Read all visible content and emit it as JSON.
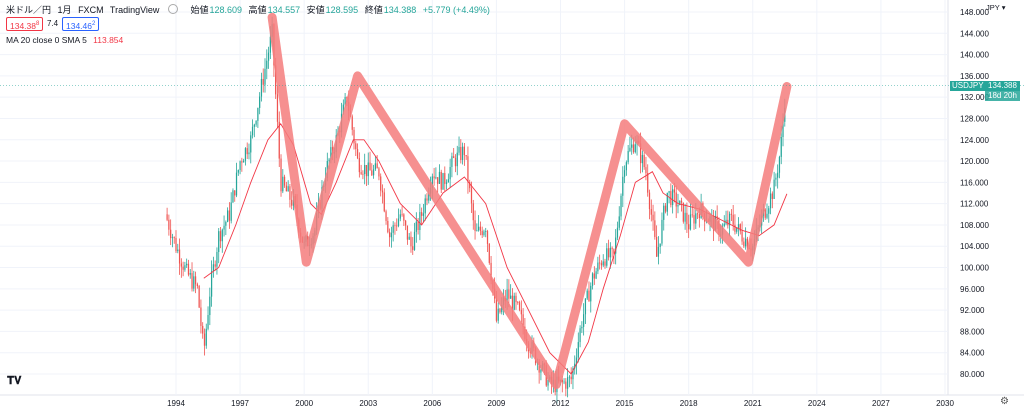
{
  "header": {
    "symbol": "米ドル／円",
    "interval": "1月",
    "exchange": "FXCM",
    "platform": "TradingView",
    "open_label": "始値",
    "open_value": "128.609",
    "high_label": "高値",
    "high_value": "134.557",
    "low_label": "安値",
    "low_value": "128.595",
    "close_label": "終値",
    "close_value": "134.388",
    "change": "+5.779 (+4.49%)",
    "sell_price": "134.38",
    "sell_sup": "8",
    "spread": "7.4",
    "buy_price": "134.46",
    "buy_sup": "2"
  },
  "indicator": {
    "label": "MA 20 close 0 SMA 5",
    "value": "113.854"
  },
  "currency_label": "JPY",
  "price_tag": {
    "symbol": "USDJPY",
    "price": "134.388",
    "countdown": "18d 20h"
  },
  "colors": {
    "up": "#26a69a",
    "down": "#ef5350",
    "ma": "#f23645",
    "overlay": "#f47c7c",
    "grid": "#f0f3fa"
  },
  "chart_data": {
    "type": "candlestick",
    "symbol": "USDJPY",
    "interval": "1M",
    "x_axis_labels": [
      "1994",
      "1997",
      "2000",
      "2003",
      "2006",
      "2009",
      "2012",
      "2015",
      "2018",
      "2021",
      "2024",
      "2027",
      "2030"
    ],
    "y_axis_labels": [
      "80.000",
      "84.000",
      "88.000",
      "92.000",
      "96.000",
      "100.000",
      "104.000",
      "108.000",
      "112.000",
      "116.000",
      "120.000",
      "124.000",
      "128.000",
      "132.000",
      "136.000",
      "140.000",
      "144.000",
      "148.000"
    ],
    "ylim": [
      77,
      149
    ],
    "approx_close_path": [
      {
        "x": 1993.5,
        "y": 110
      },
      {
        "x": 1994.0,
        "y": 104
      },
      {
        "x": 1994.5,
        "y": 99
      },
      {
        "x": 1995.0,
        "y": 96
      },
      {
        "x": 1995.3,
        "y": 84
      },
      {
        "x": 1995.6,
        "y": 96
      },
      {
        "x": 1996.0,
        "y": 106
      },
      {
        "x": 1996.5,
        "y": 110
      },
      {
        "x": 1997.0,
        "y": 120
      },
      {
        "x": 1997.5,
        "y": 124
      },
      {
        "x": 1998.0,
        "y": 134
      },
      {
        "x": 1998.5,
        "y": 144
      },
      {
        "x": 1998.9,
        "y": 116
      },
      {
        "x": 1999.5,
        "y": 112
      },
      {
        "x": 2000.0,
        "y": 104
      },
      {
        "x": 2000.5,
        "y": 107
      },
      {
        "x": 2001.0,
        "y": 118
      },
      {
        "x": 2001.5,
        "y": 124
      },
      {
        "x": 2002.0,
        "y": 132
      },
      {
        "x": 2002.5,
        "y": 120
      },
      {
        "x": 2003.0,
        "y": 118
      },
      {
        "x": 2003.5,
        "y": 118
      },
      {
        "x": 2004.0,
        "y": 106
      },
      {
        "x": 2004.5,
        "y": 110
      },
      {
        "x": 2005.0,
        "y": 104
      },
      {
        "x": 2005.5,
        "y": 110
      },
      {
        "x": 2006.0,
        "y": 118
      },
      {
        "x": 2006.5,
        "y": 116
      },
      {
        "x": 2007.0,
        "y": 120
      },
      {
        "x": 2007.5,
        "y": 122
      },
      {
        "x": 2008.0,
        "y": 106
      },
      {
        "x": 2008.5,
        "y": 108
      },
      {
        "x": 2009.0,
        "y": 90
      },
      {
        "x": 2009.5,
        "y": 95
      },
      {
        "x": 2010.0,
        "y": 92
      },
      {
        "x": 2010.5,
        "y": 86
      },
      {
        "x": 2011.0,
        "y": 82
      },
      {
        "x": 2011.5,
        "y": 78
      },
      {
        "x": 2012.0,
        "y": 78
      },
      {
        "x": 2012.5,
        "y": 79
      },
      {
        "x": 2013.0,
        "y": 90
      },
      {
        "x": 2013.5,
        "y": 98
      },
      {
        "x": 2014.0,
        "y": 102
      },
      {
        "x": 2014.5,
        "y": 102
      },
      {
        "x": 2015.0,
        "y": 120
      },
      {
        "x": 2015.5,
        "y": 124
      },
      {
        "x": 2016.0,
        "y": 118
      },
      {
        "x": 2016.5,
        "y": 102
      },
      {
        "x": 2017.0,
        "y": 114
      },
      {
        "x": 2017.5,
        "y": 112
      },
      {
        "x": 2018.0,
        "y": 108
      },
      {
        "x": 2018.5,
        "y": 111
      },
      {
        "x": 2019.0,
        "y": 109
      },
      {
        "x": 2019.5,
        "y": 107
      },
      {
        "x": 2020.0,
        "y": 109
      },
      {
        "x": 2020.5,
        "y": 106
      },
      {
        "x": 2021.0,
        "y": 104
      },
      {
        "x": 2021.5,
        "y": 110
      },
      {
        "x": 2022.0,
        "y": 115
      },
      {
        "x": 2022.3,
        "y": 122
      },
      {
        "x": 2022.45,
        "y": 129
      },
      {
        "x": 2022.55,
        "y": 134.388
      }
    ],
    "moving_average": [
      {
        "x": 1995.3,
        "y": 98
      },
      {
        "x": 1996.0,
        "y": 100
      },
      {
        "x": 1996.8,
        "y": 108
      },
      {
        "x": 1997.5,
        "y": 116
      },
      {
        "x": 1998.3,
        "y": 124
      },
      {
        "x": 1998.9,
        "y": 127
      },
      {
        "x": 1999.5,
        "y": 123
      },
      {
        "x": 2000.3,
        "y": 112
      },
      {
        "x": 2000.8,
        "y": 110
      },
      {
        "x": 2001.5,
        "y": 116
      },
      {
        "x": 2002.3,
        "y": 124
      },
      {
        "x": 2002.8,
        "y": 124
      },
      {
        "x": 2003.5,
        "y": 120
      },
      {
        "x": 2004.5,
        "y": 112
      },
      {
        "x": 2005.5,
        "y": 108
      },
      {
        "x": 2006.5,
        "y": 114
      },
      {
        "x": 2007.5,
        "y": 117
      },
      {
        "x": 2008.5,
        "y": 112
      },
      {
        "x": 2009.5,
        "y": 100
      },
      {
        "x": 2010.5,
        "y": 92
      },
      {
        "x": 2011.5,
        "y": 84
      },
      {
        "x": 2012.5,
        "y": 80
      },
      {
        "x": 2013.3,
        "y": 86
      },
      {
        "x": 2014.0,
        "y": 96
      },
      {
        "x": 2014.8,
        "y": 106
      },
      {
        "x": 2015.5,
        "y": 116
      },
      {
        "x": 2016.3,
        "y": 118
      },
      {
        "x": 2016.8,
        "y": 114
      },
      {
        "x": 2017.5,
        "y": 112
      },
      {
        "x": 2018.5,
        "y": 111
      },
      {
        "x": 2019.5,
        "y": 109
      },
      {
        "x": 2020.5,
        "y": 107
      },
      {
        "x": 2021.3,
        "y": 106
      },
      {
        "x": 2022.0,
        "y": 108
      },
      {
        "x": 2022.6,
        "y": 113.854
      }
    ],
    "overlay_trendline": [
      {
        "x": 1998.5,
        "y": 147
      },
      {
        "x": 2000.1,
        "y": 101
      },
      {
        "x": 2002.5,
        "y": 136
      },
      {
        "x": 2011.8,
        "y": 78
      },
      {
        "x": 2015.0,
        "y": 127
      },
      {
        "x": 2020.8,
        "y": 101
      },
      {
        "x": 2022.6,
        "y": 134
      }
    ],
    "grid": true
  }
}
